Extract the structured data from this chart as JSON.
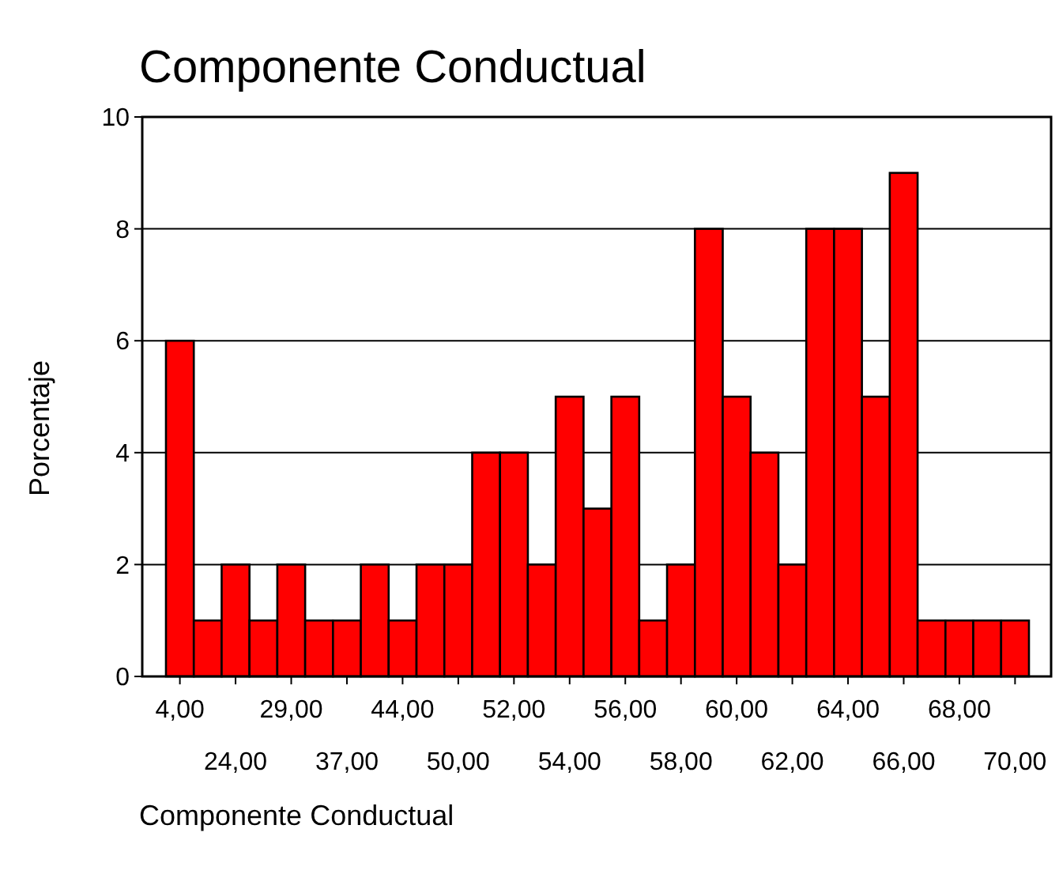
{
  "chart_data": {
    "type": "bar",
    "title": "Componente Conductual",
    "xlabel": "Componente Conductual",
    "ylabel": "Porcentaje",
    "categories": [
      "4,00",
      null,
      "24,00",
      null,
      "29,00",
      null,
      "37,00",
      null,
      "44,00",
      null,
      "50,00",
      null,
      "52,00",
      null,
      "54,00",
      null,
      "56,00",
      null,
      "58,00",
      null,
      "60,00",
      null,
      "62,00",
      null,
      "64,00",
      null,
      "66,00",
      null,
      "68,00",
      null,
      "70,00"
    ],
    "values": [
      6,
      1,
      2,
      1,
      2,
      1,
      1,
      2,
      1,
      2,
      2,
      4,
      4,
      2,
      5,
      3,
      5,
      1,
      2,
      8,
      5,
      4,
      2,
      8,
      8,
      5,
      9,
      1,
      1,
      1,
      1
    ],
    "color": "#ff0000",
    "ylim": [
      0,
      10
    ],
    "yticks": [
      0,
      2,
      4,
      6,
      8,
      10
    ],
    "grid": "y"
  }
}
